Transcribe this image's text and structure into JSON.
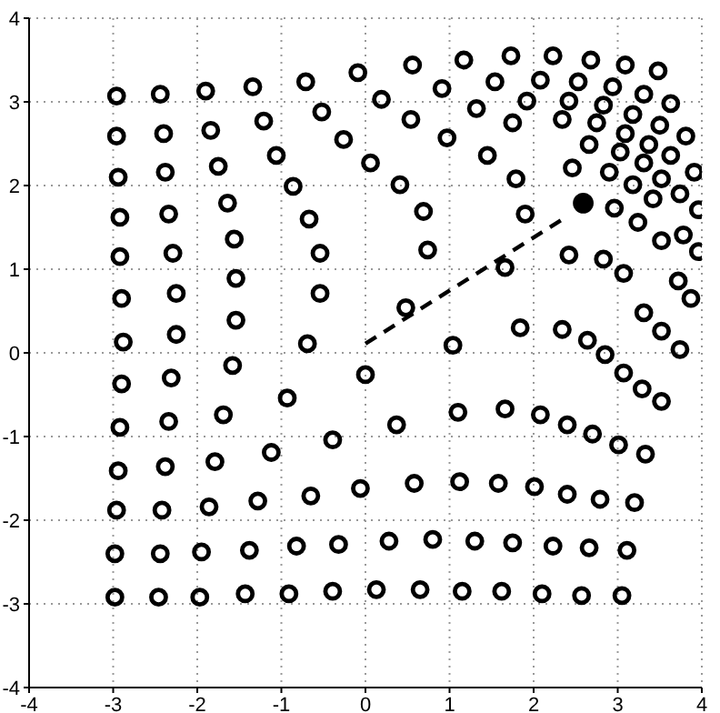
{
  "chart_data": {
    "type": "scatter",
    "xlim": [
      -4,
      4
    ],
    "ylim": [
      -4,
      4
    ],
    "xticks": [
      -4,
      -3,
      -2,
      -1,
      0,
      1,
      2,
      3,
      4
    ],
    "yticks": [
      -4,
      -3,
      -2,
      -1,
      0,
      1,
      2,
      3,
      4
    ],
    "grid": true,
    "marker": "circle",
    "series": [
      {
        "color": "#000000",
        "x": [
          -2.96,
          -2.44,
          -1.9,
          -1.34,
          -0.71,
          -0.09,
          0.56,
          1.17,
          1.73,
          2.23,
          2.68,
          3.09,
          3.48,
          -2.96,
          -2.4,
          -1.84,
          -1.21,
          -0.52,
          0.19,
          0.91,
          1.54,
          2.08,
          2.53,
          2.94,
          3.31,
          3.63,
          -2.94,
          -2.38,
          -1.75,
          -1.06,
          -0.26,
          0.54,
          1.32,
          1.92,
          2.42,
          2.83,
          3.18,
          3.5,
          3.81,
          -2.92,
          -2.34,
          -1.64,
          -0.86,
          0.06,
          0.97,
          1.75,
          2.34,
          2.75,
          3.09,
          3.37,
          3.63,
          3.91,
          -2.92,
          -2.29,
          -1.56,
          -0.67,
          0.41,
          1.45,
          2.66,
          3.03,
          3.31,
          3.52,
          3.74,
          3.96,
          -2.9,
          -2.25,
          -1.54,
          -0.54,
          0.69,
          1.79,
          2.46,
          2.9,
          3.18,
          3.42,
          3.78,
          3.96,
          -2.88,
          -2.25,
          -1.54,
          -0.54,
          0.74,
          1.9,
          2.96,
          3.24,
          3.52,
          3.72,
          3.87,
          -2.9,
          -2.31,
          -1.58,
          -0.69,
          0.48,
          1.66,
          2.42,
          2.83,
          3.07,
          3.31,
          3.52,
          3.74,
          -2.92,
          -2.34,
          -1.69,
          -0.93,
          0,
          1.04,
          1.84,
          2.34,
          2.64,
          2.85,
          3.07,
          3.29,
          3.52,
          -2.94,
          -2.38,
          -1.79,
          -1.12,
          -0.39,
          0.37,
          1.1,
          1.66,
          2.08,
          2.4,
          2.7,
          3.01,
          3.33,
          -2.96,
          -2.42,
          -1.86,
          -1.28,
          -0.65,
          -0.06,
          0.58,
          1.12,
          1.58,
          2.01,
          2.4,
          2.79,
          3.2,
          -2.98,
          -2.44,
          -1.95,
          -1.38,
          -0.82,
          -0.32,
          0.28,
          0.8,
          1.3,
          1.75,
          2.23,
          2.66,
          3.11,
          -2.98,
          -2.46,
          -1.97,
          -1.43,
          -0.91,
          -0.39,
          0.13,
          0.65,
          1.15,
          1.62,
          2.1,
          2.57,
          3.05
        ],
        "values": [
          3.07,
          3.09,
          3.13,
          3.18,
          3.24,
          3.35,
          3.44,
          3.5,
          3.55,
          3.55,
          3.5,
          3.44,
          3.37,
          2.59,
          2.62,
          2.66,
          2.77,
          2.88,
          3.03,
          3.16,
          3.24,
          3.26,
          3.24,
          3.18,
          3.09,
          2.98,
          2.1,
          2.16,
          2.23,
          2.36,
          2.55,
          2.79,
          2.92,
          3.01,
          3.01,
          2.96,
          2.85,
          2.72,
          2.59,
          1.62,
          1.66,
          1.79,
          1.99,
          2.27,
          2.57,
          2.75,
          2.79,
          2.75,
          2.62,
          2.49,
          2.36,
          2.16,
          1.15,
          1.19,
          1.36,
          1.6,
          2.01,
          2.36,
          2.49,
          2.4,
          2.27,
          2.08,
          1.9,
          1.71,
          0.65,
          0.71,
          0.89,
          1.19,
          1.69,
          2.08,
          2.21,
          2.16,
          2.01,
          1.84,
          1.41,
          1.21,
          0.13,
          0.22,
          0.39,
          0.71,
          1.23,
          1.66,
          1.73,
          1.56,
          1.34,
          0.86,
          0.65,
          -0.37,
          -0.3,
          -0.15,
          0.11,
          0.54,
          1.02,
          1.17,
          1.12,
          0.95,
          0.48,
          0.26,
          0.04,
          -0.89,
          -0.82,
          -0.74,
          -0.54,
          -0.26,
          0.09,
          0.3,
          0.28,
          0.15,
          -0.02,
          -0.24,
          -0.43,
          -0.58,
          -1.41,
          -1.36,
          -1.3,
          -1.19,
          -1.04,
          -0.86,
          -0.71,
          -0.67,
          -0.74,
          -0.86,
          -0.97,
          -1.1,
          -1.21,
          -1.88,
          -1.88,
          -1.84,
          -1.77,
          -1.71,
          -1.62,
          -1.56,
          -1.54,
          -1.56,
          -1.6,
          -1.69,
          -1.75,
          -1.79,
          -2.4,
          -2.4,
          -2.38,
          -2.36,
          -2.31,
          -2.29,
          -2.25,
          -2.23,
          -2.25,
          -2.27,
          -2.31,
          -2.33,
          -2.36,
          -2.92,
          -2.92,
          -2.92,
          -2.88,
          -2.88,
          -2.85,
          -2.83,
          -2.83,
          -2.85,
          -2.85,
          -2.88,
          -2.9,
          -2.9
        ]
      },
      {
        "type": "line",
        "color": "#000000",
        "marker": "none",
        "line_style": "dashed",
        "x": [
          0,
          2.38
        ],
        "values": [
          0.11,
          1.62
        ]
      },
      {
        "color": "#000000",
        "x": [
          2.59
        ],
        "values": [
          1.79
        ]
      }
    ]
  }
}
